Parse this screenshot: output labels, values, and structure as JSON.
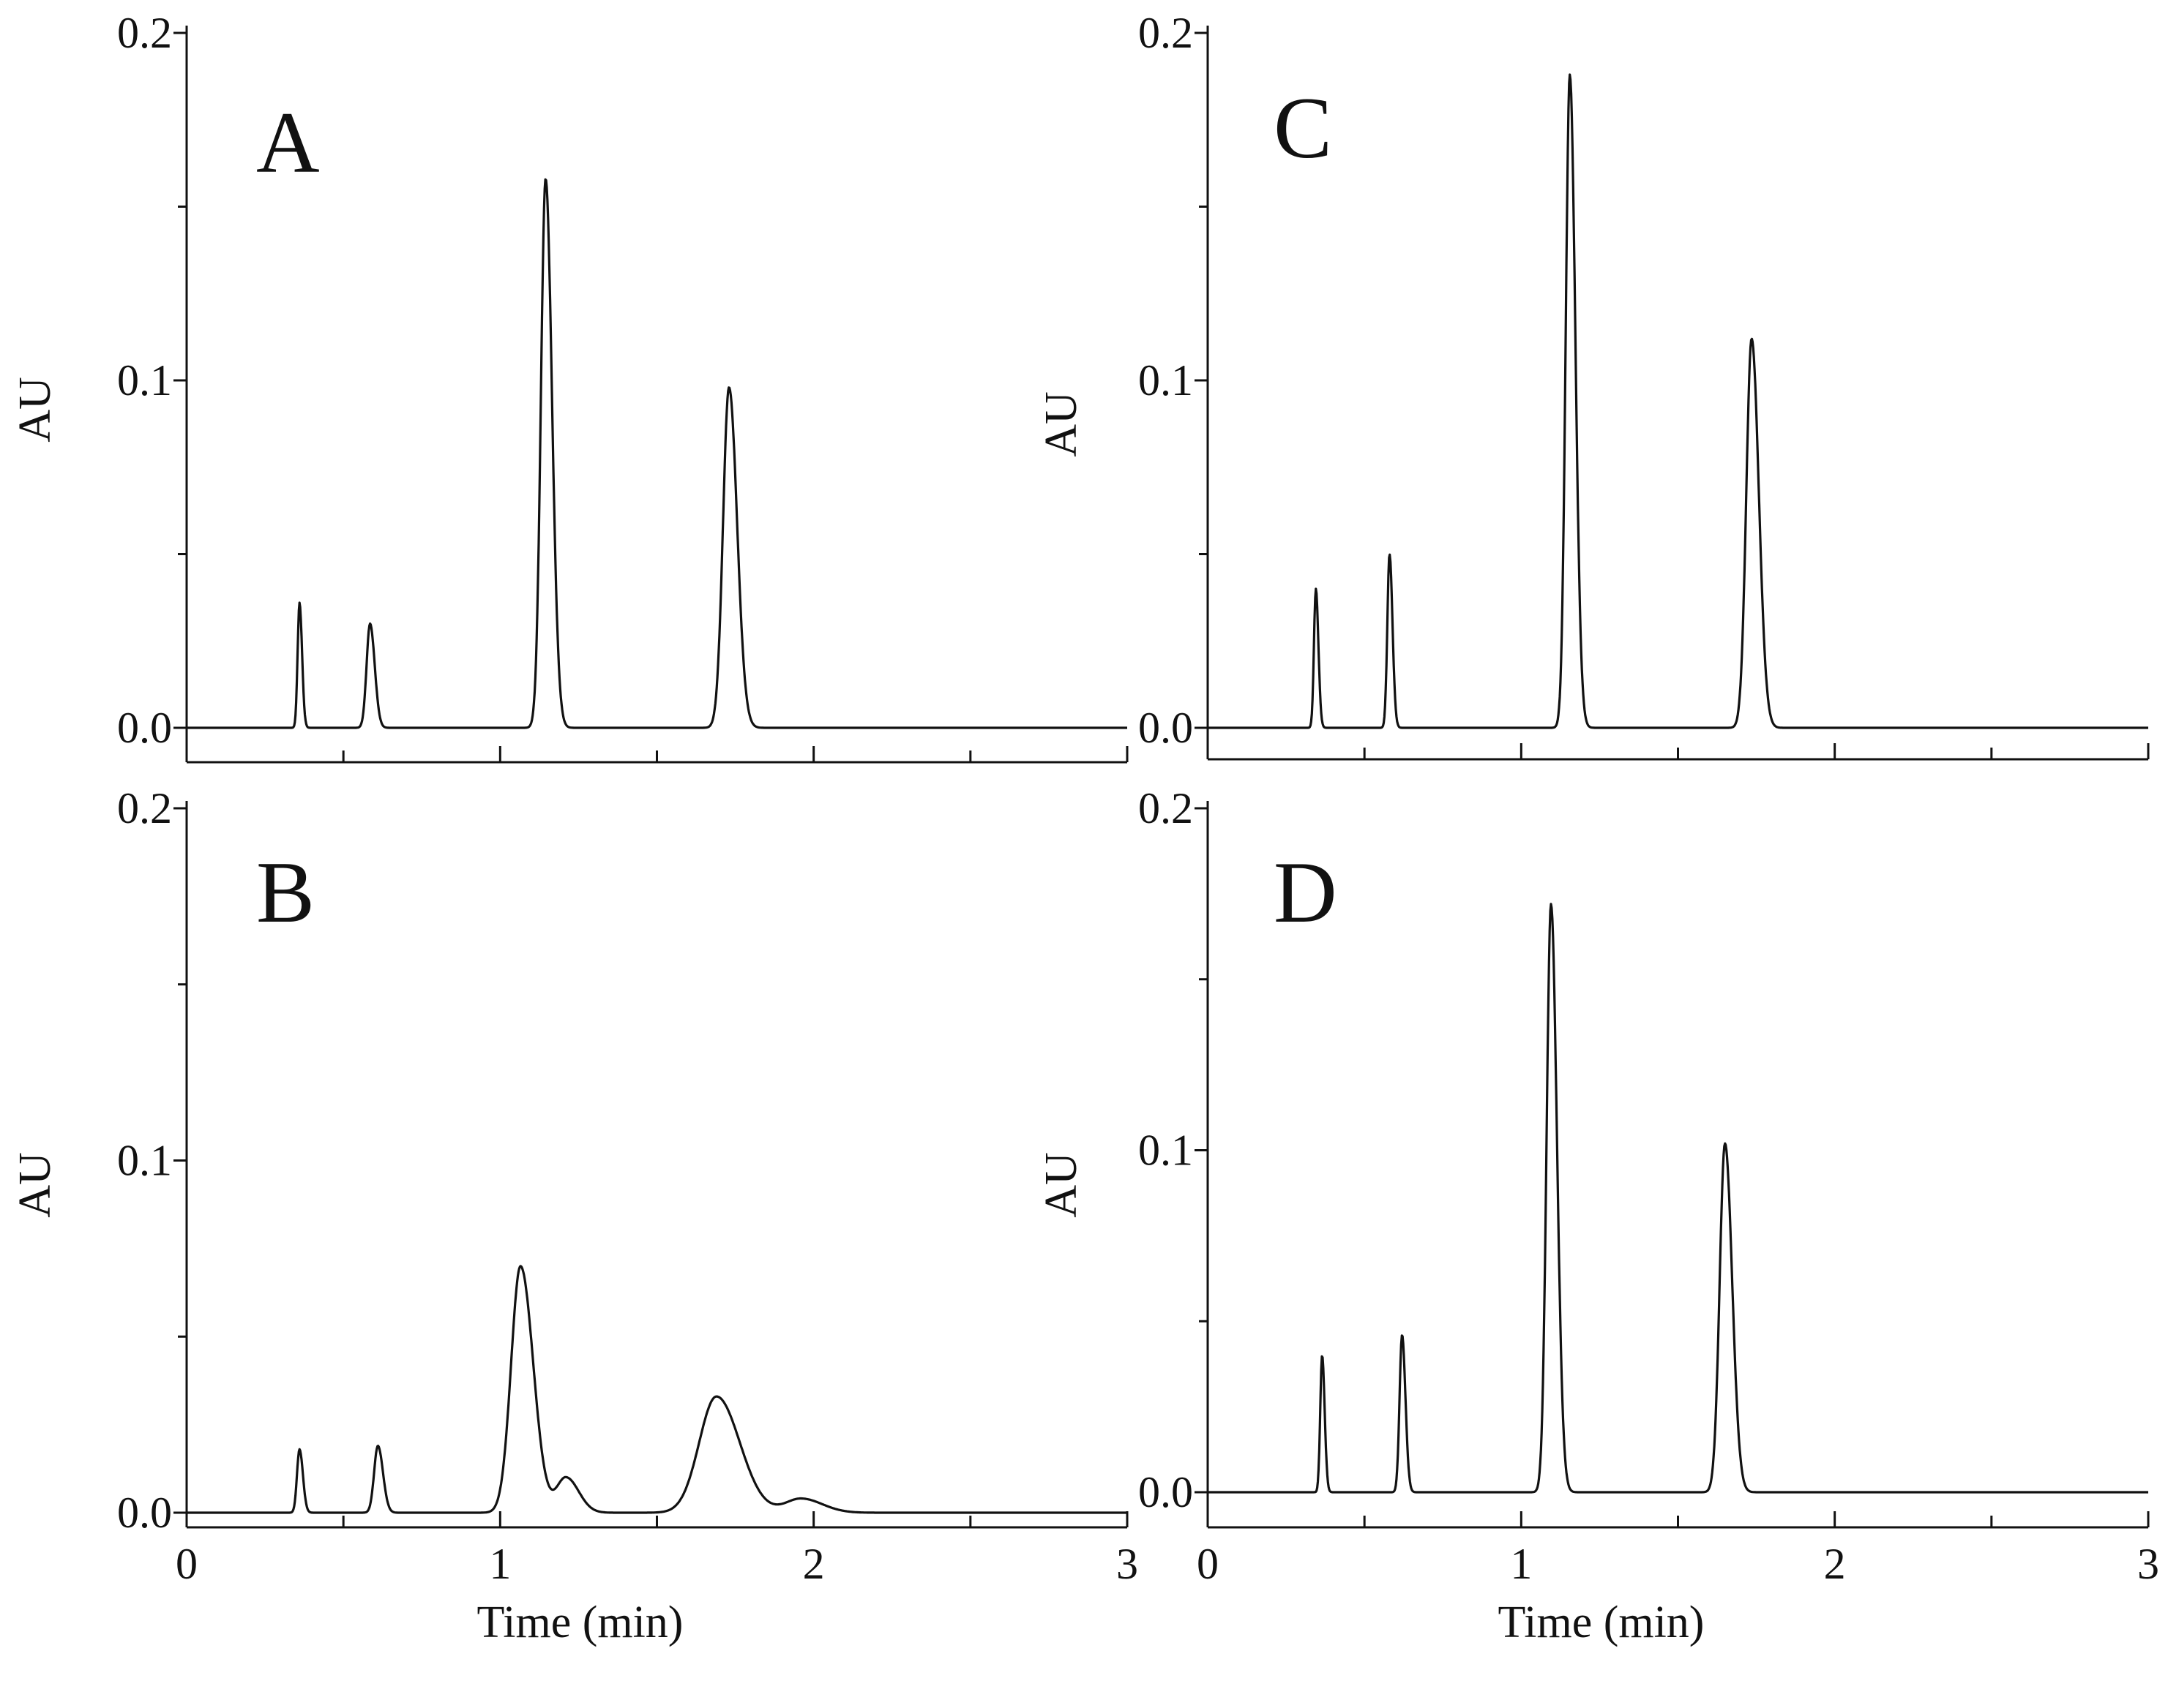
{
  "chart_data": [
    {
      "type": "line",
      "panel_label": "A",
      "ylabel": "AU",
      "xlabel": "",
      "xlim": [
        0,
        3
      ],
      "ylim": [
        -0.01,
        0.2
      ],
      "y_tick_labels": [
        "0.0",
        "0.1",
        "0.2"
      ],
      "x_tick_labels": [],
      "baseline": 0.0,
      "peaks": [
        {
          "x": 0.36,
          "y": 0.036,
          "w": 0.006
        },
        {
          "x": 0.585,
          "y": 0.03,
          "w": 0.011
        },
        {
          "x": 1.145,
          "y": 0.158,
          "w": 0.015
        },
        {
          "x": 1.73,
          "y": 0.098,
          "w": 0.019
        }
      ]
    },
    {
      "type": "line",
      "panel_label": "C",
      "ylabel": "AU",
      "xlabel": "",
      "xlim": [
        0,
        3
      ],
      "ylim": [
        -0.01,
        0.2
      ],
      "y_tick_labels": [
        "0.0",
        "0.1",
        "0.2"
      ],
      "x_tick_labels": [],
      "baseline": 0.0,
      "peaks": [
        {
          "x": 0.345,
          "y": 0.04,
          "w": 0.006
        },
        {
          "x": 0.58,
          "y": 0.05,
          "w": 0.007
        },
        {
          "x": 1.155,
          "y": 0.188,
          "w": 0.013
        },
        {
          "x": 1.735,
          "y": 0.112,
          "w": 0.017
        }
      ]
    },
    {
      "type": "line",
      "panel_label": "B",
      "ylabel": "AU",
      "xlabel": "Time (min)",
      "xlim": [
        0,
        3
      ],
      "ylim": [
        -0.005,
        0.2
      ],
      "y_tick_labels": [
        "0.0",
        "0.1",
        "0.2"
      ],
      "x_tick_labels": [
        "0",
        "1",
        "2",
        "3"
      ],
      "baseline": 0.0,
      "peaks": [
        {
          "x": 0.36,
          "y": 0.018,
          "w": 0.008
        },
        {
          "x": 0.61,
          "y": 0.019,
          "w": 0.012
        },
        {
          "x": 1.065,
          "y": 0.07,
          "w": 0.03
        },
        {
          "x": 1.21,
          "y": 0.01,
          "w": 0.03
        },
        {
          "x": 1.69,
          "y": 0.033,
          "w": 0.055
        },
        {
          "x": 1.96,
          "y": 0.004,
          "w": 0.05
        }
      ]
    },
    {
      "type": "line",
      "panel_label": "D",
      "ylabel": "AU",
      "xlabel": "Time (min)",
      "xlim": [
        0,
        3
      ],
      "ylim": [
        -0.005,
        0.2
      ],
      "y_tick_labels": [
        "0.0",
        "0.1",
        "0.2"
      ],
      "x_tick_labels": [
        "0",
        "1",
        "2",
        "3"
      ],
      "baseline": 0.0,
      "peaks": [
        {
          "x": 0.365,
          "y": 0.04,
          "w": 0.006
        },
        {
          "x": 0.62,
          "y": 0.046,
          "w": 0.008
        },
        {
          "x": 1.095,
          "y": 0.172,
          "w": 0.014
        },
        {
          "x": 1.65,
          "y": 0.102,
          "w": 0.017
        }
      ]
    }
  ]
}
